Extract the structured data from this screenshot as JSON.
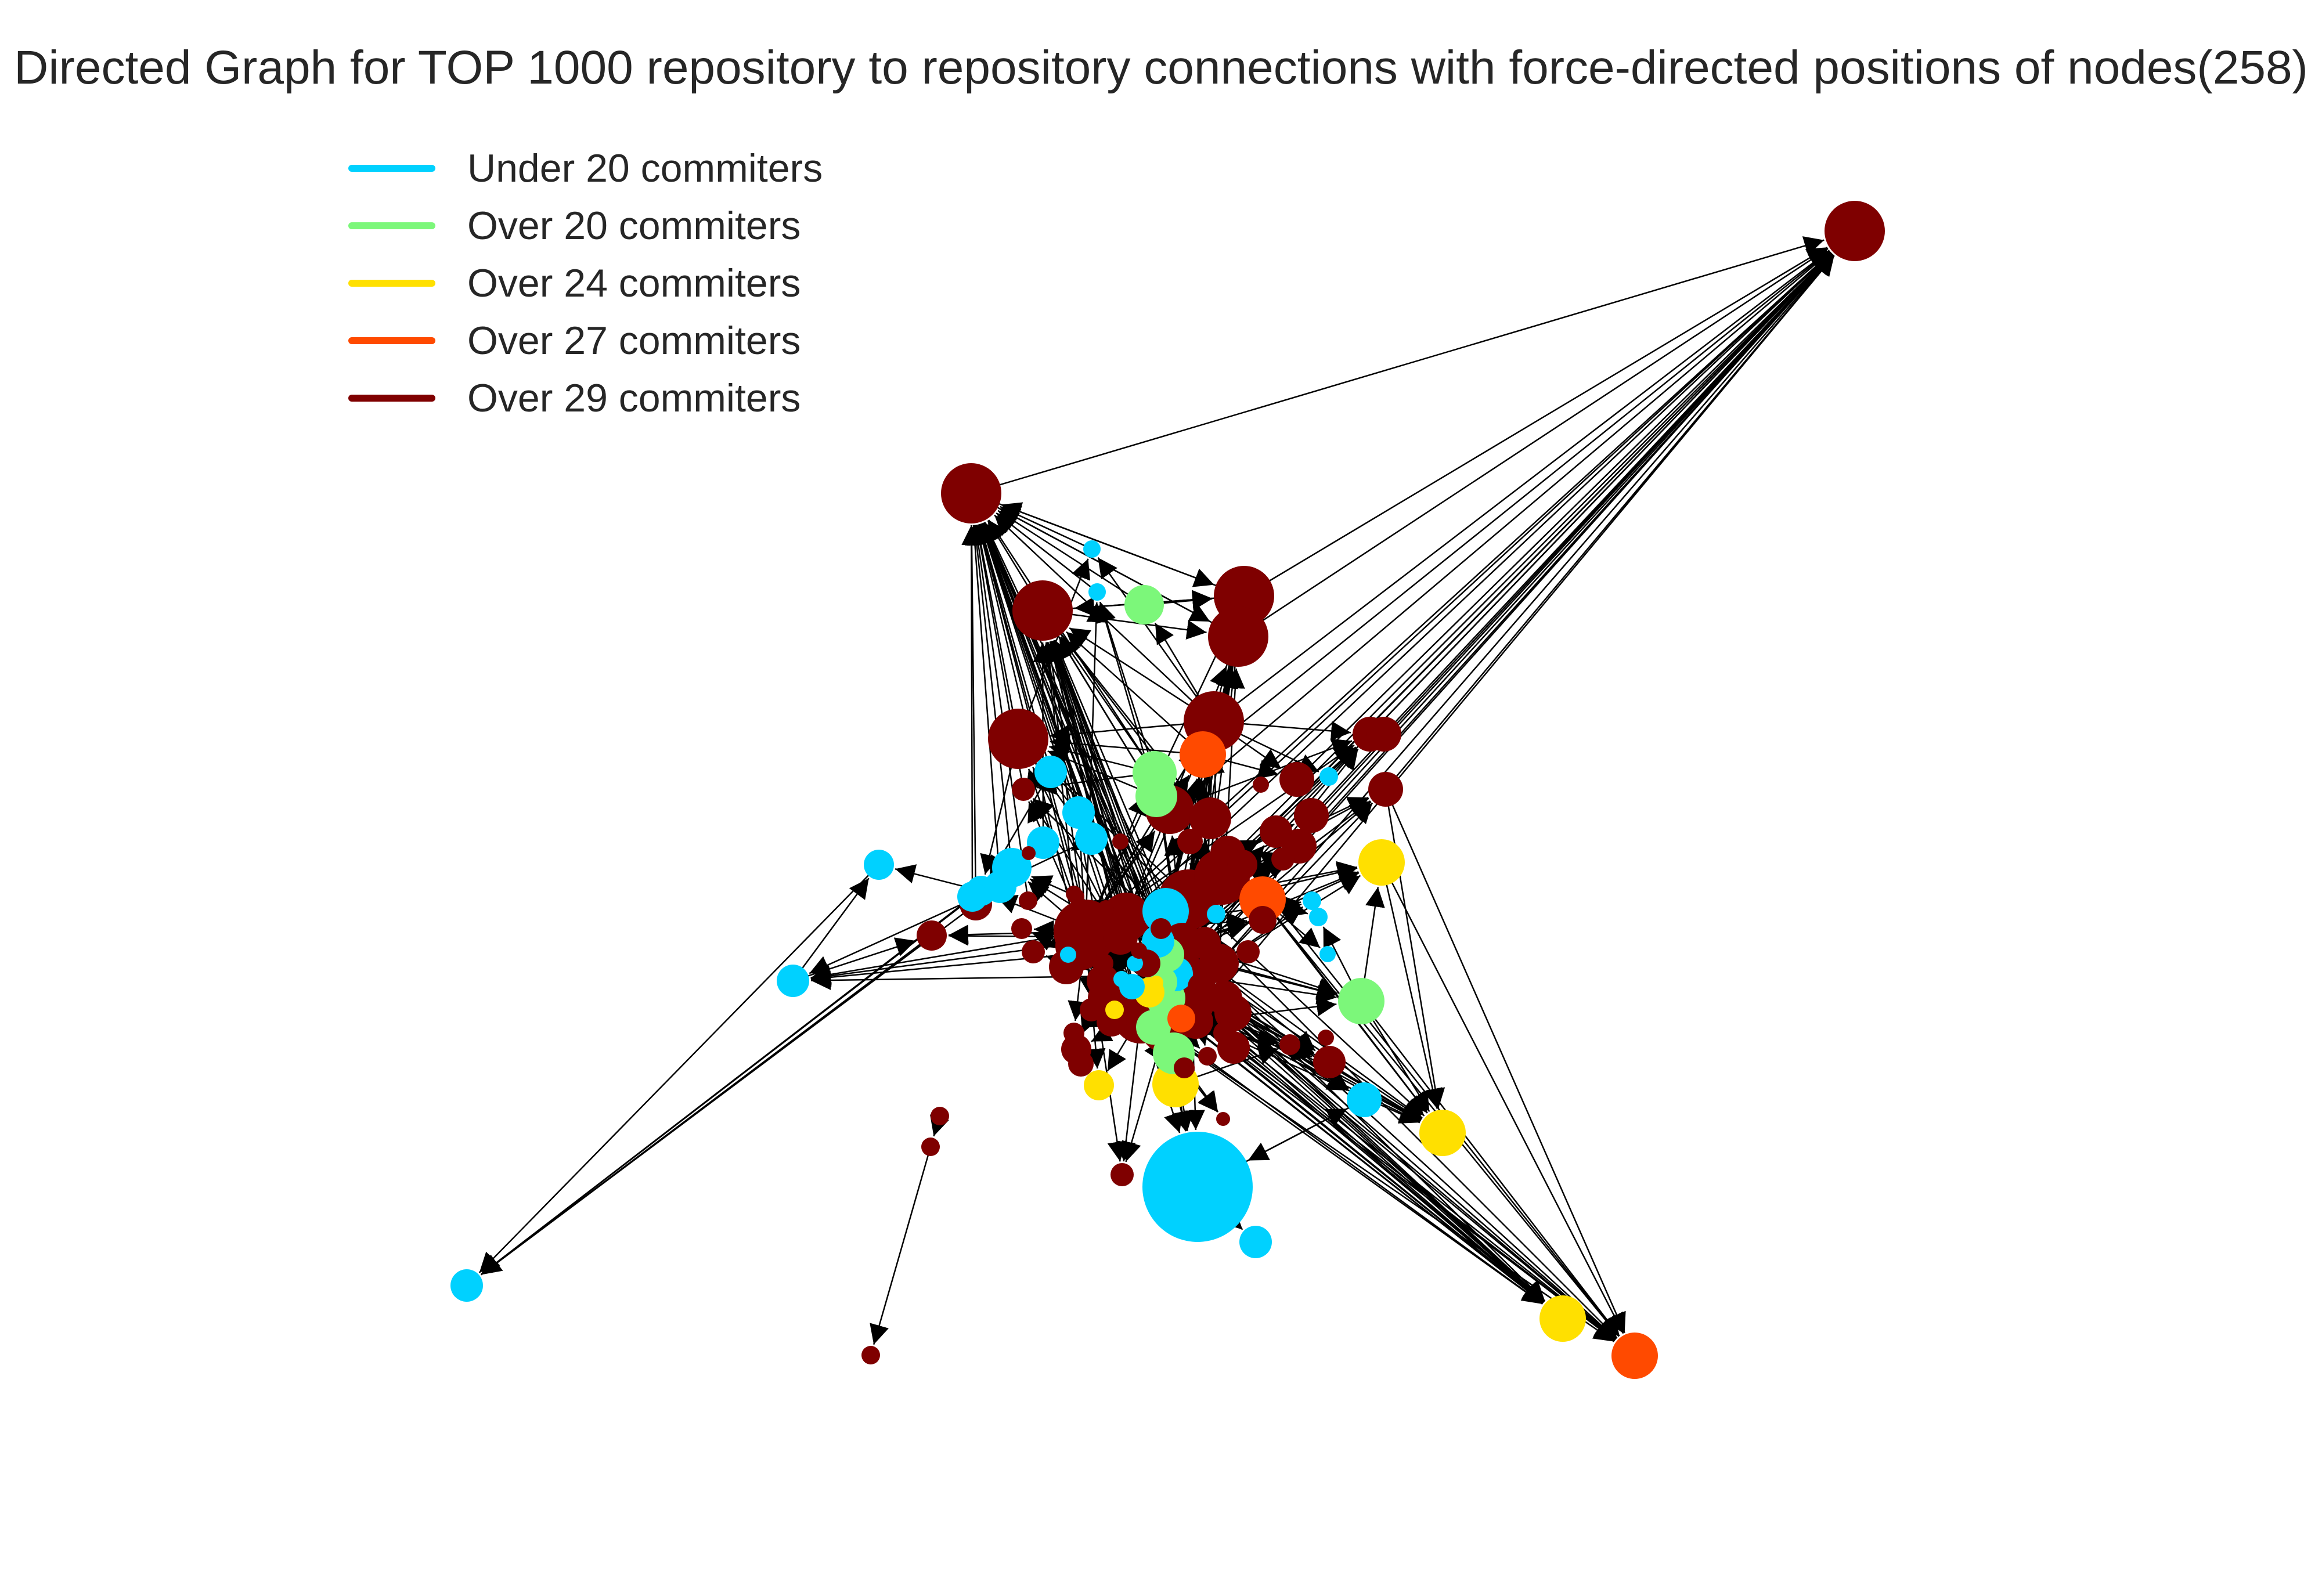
{
  "title": "Directed Graph for TOP 1000 repository to repository connections with force-directed positions of nodes(258)",
  "legend": [
    {
      "label": "Under 20 commiters",
      "color": "#00d1ff"
    },
    {
      "label": "Over 20 commiters",
      "color": "#7cf77a"
    },
    {
      "label": "Over 24 commiters",
      "color": "#ffe000"
    },
    {
      "label": "Over 27 commiters",
      "color": "#ff4a00"
    },
    {
      "label": "Over 29 commiters",
      "color": "#7f0000"
    }
  ],
  "edge_color": "#000000"
}
